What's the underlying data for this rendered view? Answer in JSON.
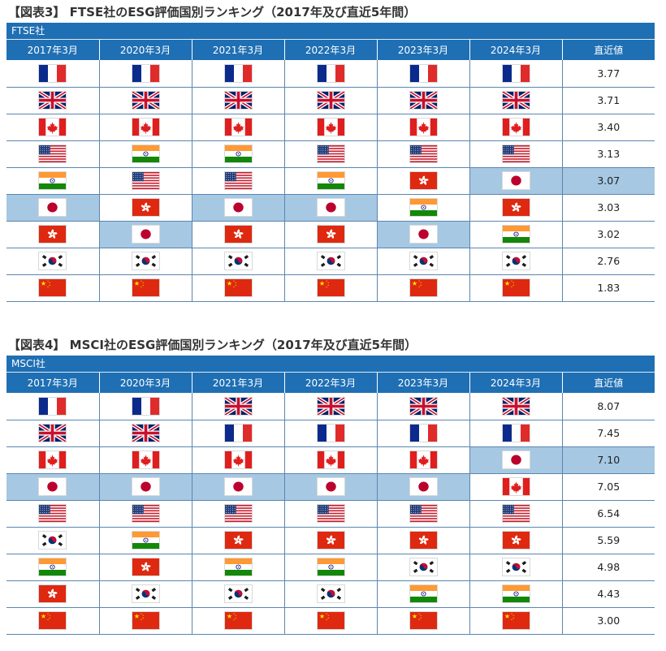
{
  "colors": {
    "header_blue": "#1f6fb4",
    "highlight": "#a6c8e3",
    "grid": "#5b86b0"
  },
  "ftse": {
    "title": "【図表3】 FTSE社のESG評価国別ランキング（2017年及び直近5年間）",
    "provider": "FTSE社",
    "headers": [
      "2017年3月",
      "2020年3月",
      "2021年3月",
      "2022年3月",
      "2023年3月",
      "2024年3月",
      "直近値"
    ],
    "rows": [
      {
        "flags": [
          "france",
          "france",
          "france",
          "france",
          "france",
          "france"
        ],
        "value": "3.77",
        "highlight": []
      },
      {
        "flags": [
          "uk",
          "uk",
          "uk",
          "uk",
          "uk",
          "uk"
        ],
        "value": "3.71",
        "highlight": []
      },
      {
        "flags": [
          "canada",
          "canada",
          "canada",
          "canada",
          "canada",
          "canada"
        ],
        "value": "3.40",
        "highlight": []
      },
      {
        "flags": [
          "usa",
          "india",
          "india",
          "usa",
          "usa",
          "usa"
        ],
        "value": "3.13",
        "highlight": []
      },
      {
        "flags": [
          "india",
          "usa",
          "usa",
          "india",
          "hongkong",
          "japan"
        ],
        "value": "3.07",
        "highlight": [
          5,
          6
        ]
      },
      {
        "flags": [
          "japan",
          "hongkong",
          "japan",
          "japan",
          "india",
          "hongkong"
        ],
        "value": "3.03",
        "highlight": [
          0,
          2,
          3
        ]
      },
      {
        "flags": [
          "hongkong",
          "japan",
          "hongkong",
          "hongkong",
          "japan",
          "india"
        ],
        "value": "3.02",
        "highlight": [
          1,
          4
        ]
      },
      {
        "flags": [
          "korea",
          "korea",
          "korea",
          "korea",
          "korea",
          "korea"
        ],
        "value": "2.76",
        "highlight": []
      },
      {
        "flags": [
          "china",
          "china",
          "china",
          "china",
          "china",
          "china"
        ],
        "value": "1.83",
        "highlight": []
      }
    ]
  },
  "msci": {
    "title": "【図表4】 MSCI社のESG評価国別ランキング（2017年及び直近5年間）",
    "provider": "MSCI社",
    "headers": [
      "2017年3月",
      "2020年3月",
      "2021年3月",
      "2022年3月",
      "2023年3月",
      "2024年3月",
      "直近値"
    ],
    "rows": [
      {
        "flags": [
          "france",
          "france",
          "uk",
          "uk",
          "uk",
          "uk"
        ],
        "value": "8.07",
        "highlight": []
      },
      {
        "flags": [
          "uk",
          "uk",
          "france",
          "france",
          "france",
          "france"
        ],
        "value": "7.45",
        "highlight": []
      },
      {
        "flags": [
          "canada",
          "canada",
          "canada",
          "canada",
          "canada",
          "japan"
        ],
        "value": "7.10",
        "highlight": [
          5,
          6
        ]
      },
      {
        "flags": [
          "japan",
          "japan",
          "japan",
          "japan",
          "japan",
          "canada"
        ],
        "value": "7.05",
        "highlight": [
          0,
          1,
          2,
          3,
          4
        ]
      },
      {
        "flags": [
          "usa",
          "usa",
          "usa",
          "usa",
          "usa",
          "usa"
        ],
        "value": "6.54",
        "highlight": []
      },
      {
        "flags": [
          "korea",
          "india",
          "hongkong",
          "hongkong",
          "hongkong",
          "hongkong"
        ],
        "value": "5.59",
        "highlight": []
      },
      {
        "flags": [
          "india",
          "hongkong",
          "india",
          "india",
          "korea",
          "korea"
        ],
        "value": "4.98",
        "highlight": []
      },
      {
        "flags": [
          "hongkong",
          "korea",
          "korea",
          "korea",
          "india",
          "india"
        ],
        "value": "4.43",
        "highlight": []
      },
      {
        "flags": [
          "china",
          "china",
          "china",
          "china",
          "china",
          "china"
        ],
        "value": "3.00",
        "highlight": []
      }
    ]
  }
}
